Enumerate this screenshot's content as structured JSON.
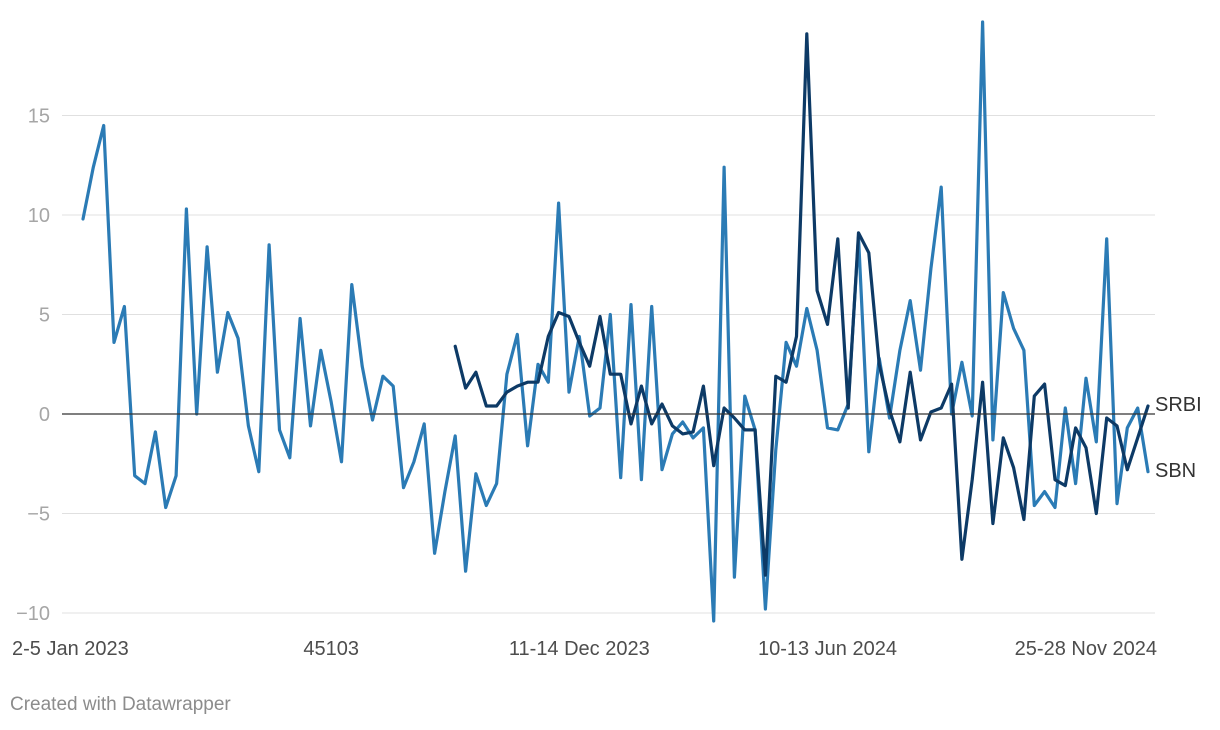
{
  "chart_data": {
    "type": "line",
    "title": "",
    "xlabel": "",
    "ylabel": "",
    "ylim": [
      -10,
      19
    ],
    "yticks": [
      -10,
      -5,
      0,
      5,
      10,
      15
    ],
    "ytick_labels": [
      "−10",
      "−5",
      "0",
      "5",
      "10",
      "15"
    ],
    "xtick_labels": [
      {
        "index": 0,
        "label": "2-5 Jan 2023"
      },
      {
        "index": 24,
        "label": "45103"
      },
      {
        "index": 48,
        "label": "11-14 Dec 2023"
      },
      {
        "index": 72,
        "label": "10-13 Jun 2024"
      },
      {
        "index": 96,
        "label": "25-28 Nov 2024"
      }
    ],
    "grid": true,
    "series": [
      {
        "name": "SBN",
        "color": "#2b7bb5",
        "values": [
          9.8,
          12.4,
          14.5,
          3.6,
          5.4,
          -3.1,
          -3.5,
          -0.9,
          -4.7,
          -3.1,
          10.3,
          0.0,
          8.4,
          2.1,
          5.1,
          3.8,
          -0.6,
          -2.9,
          8.5,
          -0.8,
          -2.2,
          4.8,
          -0.6,
          3.2,
          0.6,
          -2.4,
          6.5,
          2.4,
          -0.3,
          1.9,
          1.4,
          -3.7,
          -2.4,
          -0.5,
          -7.0,
          -3.9,
          -1.1,
          -7.9,
          -3.0,
          -4.6,
          -3.5,
          2.0,
          4.0,
          -1.6,
          2.5,
          1.6,
          10.6,
          1.1,
          3.9,
          -0.1,
          0.3,
          5.0,
          -3.2,
          5.5,
          -3.3,
          5.4,
          -2.8,
          -1.0,
          -0.4,
          -1.2,
          -0.7,
          -10.4,
          12.4,
          -8.2,
          0.9,
          -0.8,
          -9.8,
          -1.8,
          3.6,
          2.4,
          5.3,
          3.2,
          -0.7,
          -0.8,
          0.5,
          8.9,
          -1.9,
          2.8,
          -0.2,
          3.2,
          5.7,
          2.2,
          7.3,
          11.4,
          0.0,
          2.6,
          -0.1,
          19.7,
          -1.3,
          6.1,
          4.3,
          3.2,
          -4.6,
          -3.9,
          -4.7,
          0.3,
          -3.5,
          1.8,
          -1.4,
          8.8,
          -4.5,
          -0.7,
          0.3,
          -2.9
        ],
        "end_label": "SBN"
      },
      {
        "name": "SRBI",
        "color": "#0d3a66",
        "values": [
          null,
          null,
          null,
          null,
          null,
          null,
          null,
          null,
          null,
          null,
          null,
          null,
          null,
          null,
          null,
          null,
          null,
          null,
          null,
          null,
          null,
          null,
          null,
          null,
          null,
          null,
          null,
          null,
          null,
          null,
          null,
          null,
          null,
          null,
          null,
          null,
          3.4,
          1.3,
          2.1,
          0.4,
          0.4,
          1.1,
          1.4,
          1.6,
          1.6,
          3.9,
          5.1,
          4.9,
          3.6,
          2.4,
          4.9,
          2.0,
          2.0,
          -0.5,
          1.4,
          -0.5,
          0.5,
          -0.6,
          -1.0,
          -0.9,
          1.4,
          -2.6,
          0.3,
          -0.2,
          -0.8,
          -0.8,
          -8.1,
          1.9,
          1.6,
          3.9,
          19.1,
          6.2,
          4.5,
          8.8,
          0.3,
          9.1,
          8.1,
          2.5,
          0.2,
          -1.4,
          2.1,
          -1.3,
          0.1,
          0.3,
          1.5,
          -7.3,
          -3.3,
          1.6,
          -5.5,
          -1.2,
          -2.7,
          -5.3,
          0.9,
          1.5,
          -3.3,
          -3.6,
          -0.7,
          -1.7,
          -5.0,
          -0.2,
          -0.6,
          -2.8,
          -1.2,
          0.4
        ],
        "end_label": "SRBI"
      }
    ],
    "zero_line": true
  },
  "footer": {
    "credit": "Created with Datawrapper"
  }
}
